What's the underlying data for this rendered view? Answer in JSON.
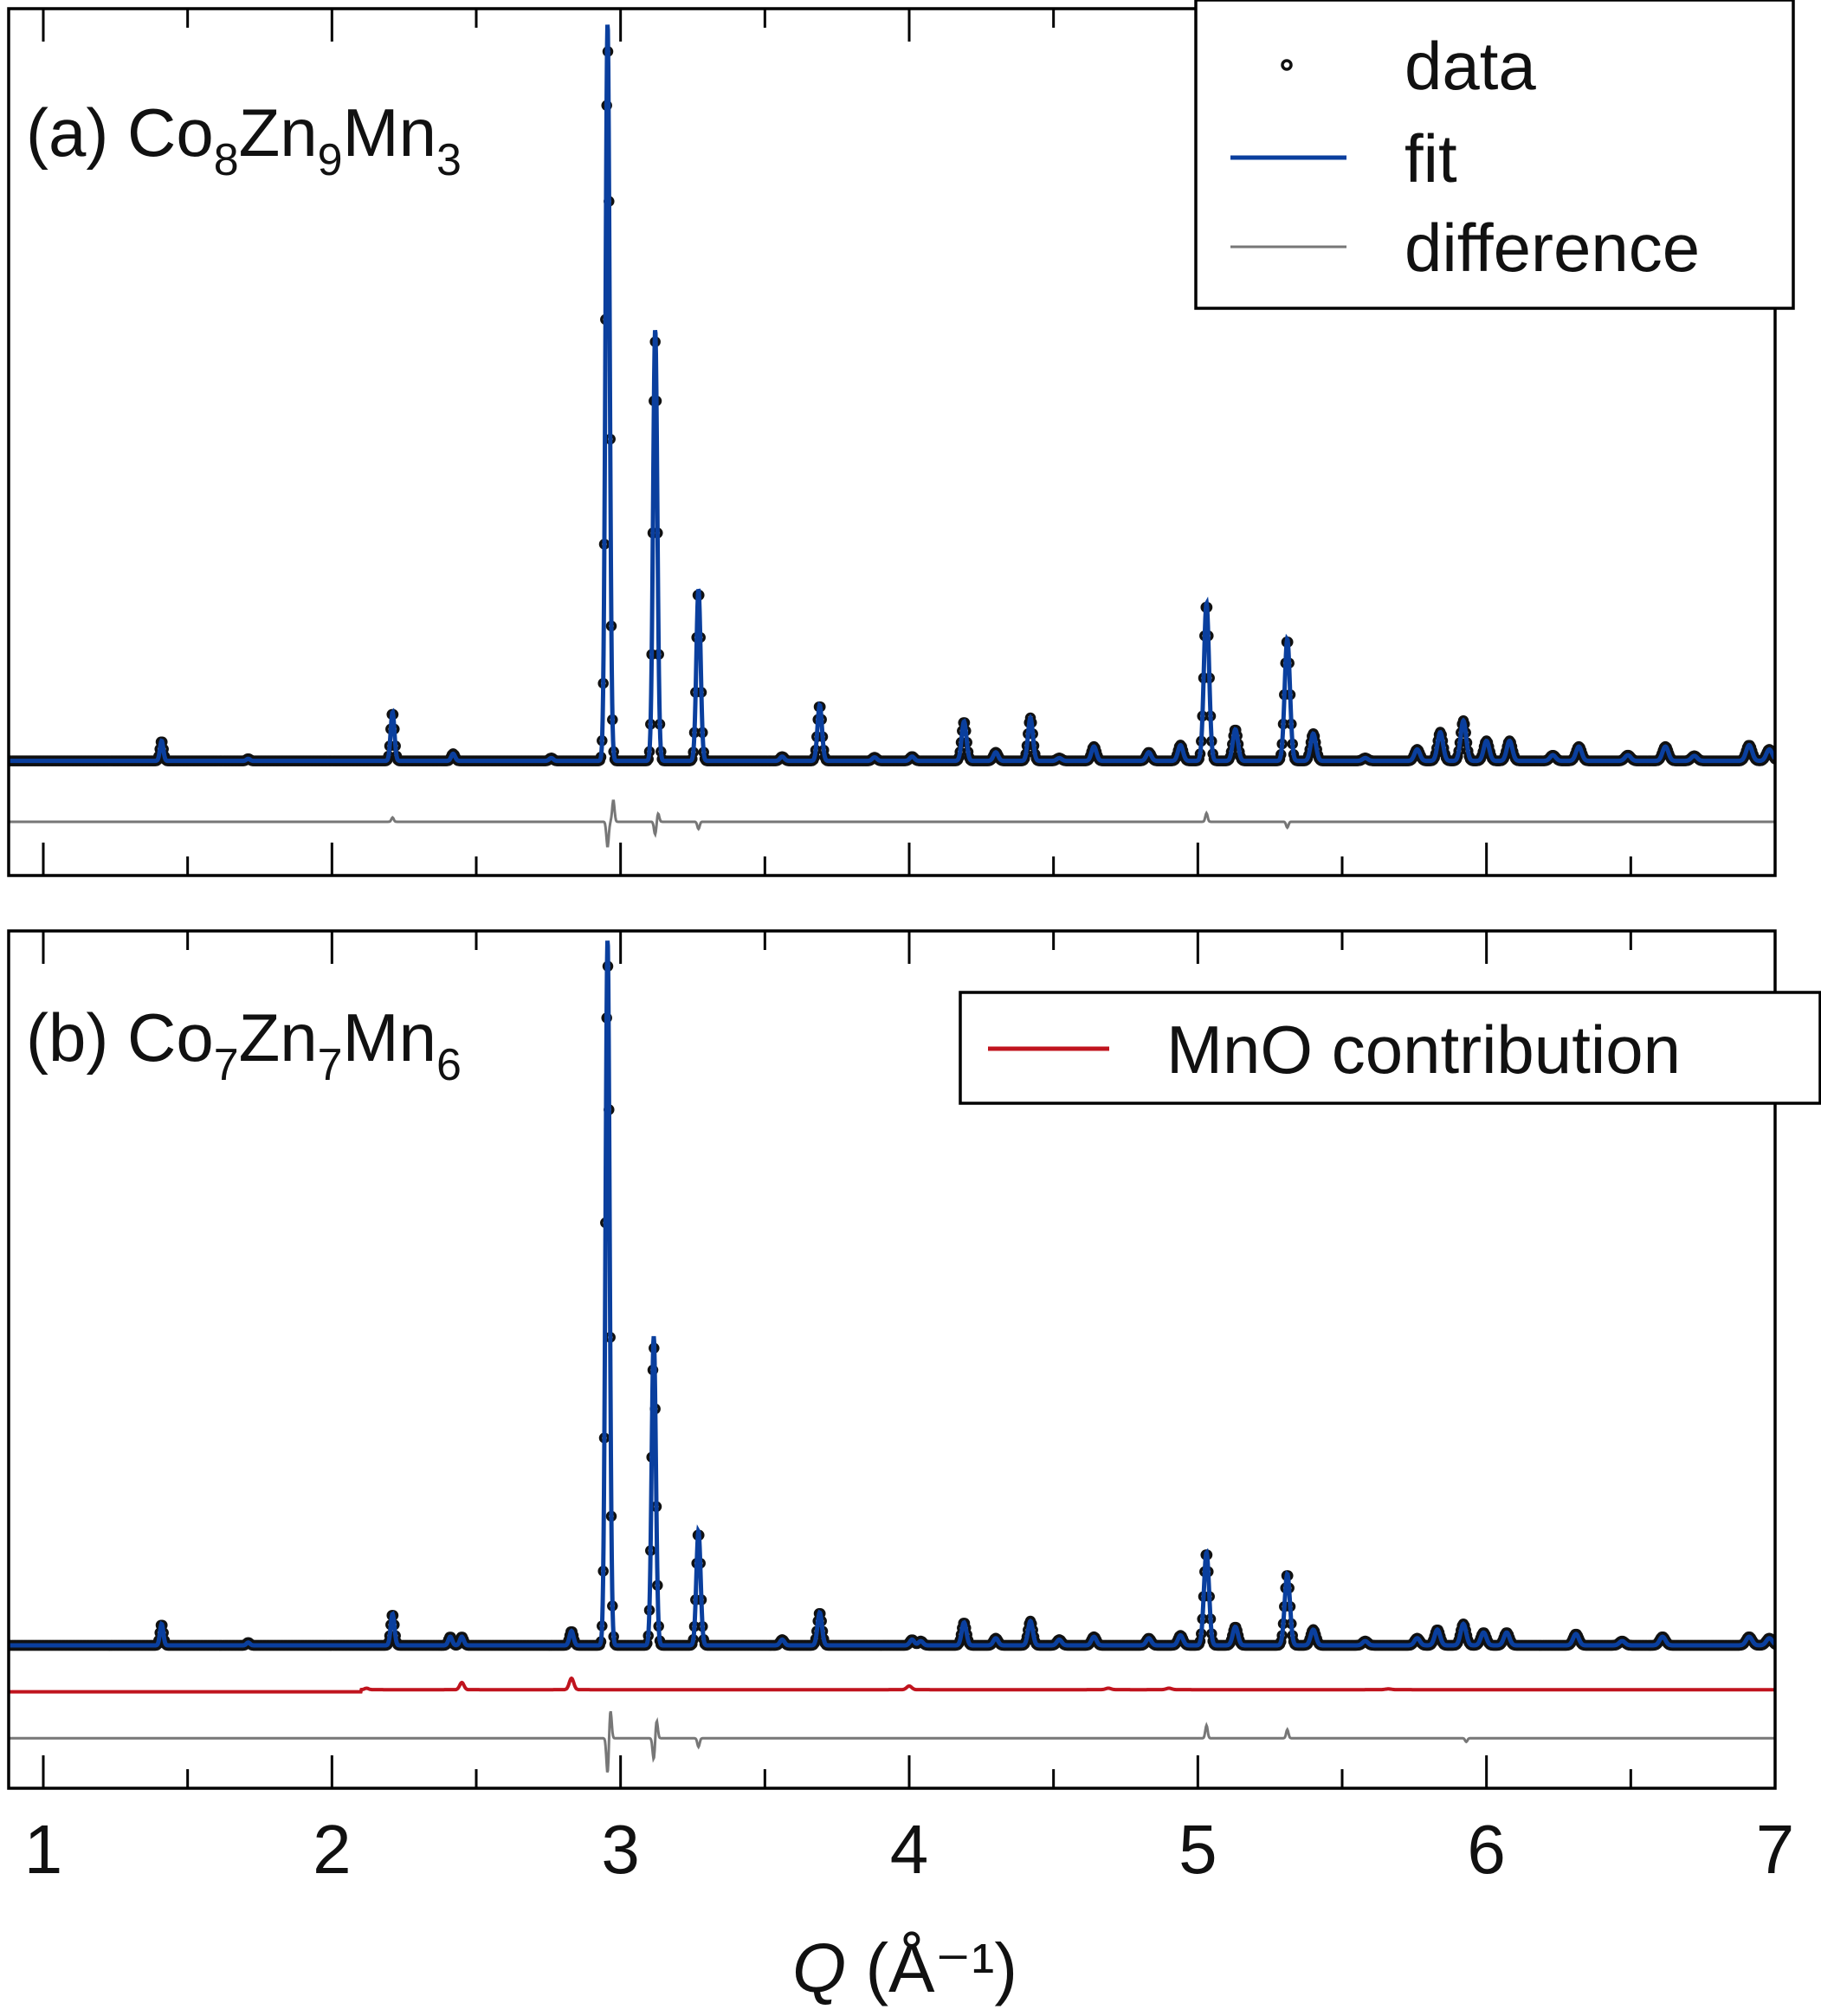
{
  "chart_data": [
    {
      "type": "scatter",
      "panel": "a",
      "title_prefix": "(a) ",
      "formula": [
        [
          "Co",
          "8"
        ],
        [
          "Zn",
          "9"
        ],
        [
          "Mn",
          "3"
        ]
      ],
      "xlabel_symbol": "Q",
      "xlabel_unit": " (Å⁻¹)",
      "xlim": [
        0.88,
        7.0
      ],
      "ylim": [
        -0.16,
        1.05
      ],
      "baseline": 0.0,
      "difference_offset": -0.085,
      "legend": {
        "placement": "top-right",
        "entries": [
          "data",
          "fit",
          "difference"
        ]
      },
      "series": [
        {
          "name": "data",
          "marker": "open-circle"
        },
        {
          "name": "fit",
          "style": "line"
        },
        {
          "name": "difference",
          "style": "line"
        }
      ],
      "peaks": [
        {
          "q": 1.41,
          "h": 0.028
        },
        {
          "q": 1.71,
          "h": 0.003
        },
        {
          "q": 2.21,
          "h": 0.068
        },
        {
          "q": 2.42,
          "h": 0.01
        },
        {
          "q": 2.76,
          "h": 0.004
        },
        {
          "q": 2.955,
          "h": 1.0
        },
        {
          "q": 3.12,
          "h": 0.585
        },
        {
          "q": 3.27,
          "h": 0.24
        },
        {
          "q": 3.56,
          "h": 0.006
        },
        {
          "q": 3.69,
          "h": 0.078
        },
        {
          "q": 3.88,
          "h": 0.005
        },
        {
          "q": 4.01,
          "h": 0.006
        },
        {
          "q": 4.19,
          "h": 0.055
        },
        {
          "q": 4.3,
          "h": 0.012
        },
        {
          "q": 4.42,
          "h": 0.06
        },
        {
          "q": 4.52,
          "h": 0.004
        },
        {
          "q": 4.64,
          "h": 0.02
        },
        {
          "q": 4.83,
          "h": 0.012
        },
        {
          "q": 4.94,
          "h": 0.022
        },
        {
          "q": 5.03,
          "h": 0.22
        },
        {
          "q": 5.13,
          "h": 0.044
        },
        {
          "q": 5.31,
          "h": 0.17
        },
        {
          "q": 5.4,
          "h": 0.038
        },
        {
          "q": 5.58,
          "h": 0.004
        },
        {
          "q": 5.76,
          "h": 0.016
        },
        {
          "q": 5.84,
          "h": 0.04
        },
        {
          "q": 5.92,
          "h": 0.056
        },
        {
          "q": 6.0,
          "h": 0.028
        },
        {
          "q": 6.08,
          "h": 0.028
        },
        {
          "q": 6.23,
          "h": 0.008
        },
        {
          "q": 6.32,
          "h": 0.02
        },
        {
          "q": 6.49,
          "h": 0.008
        },
        {
          "q": 6.62,
          "h": 0.02
        },
        {
          "q": 6.72,
          "h": 0.007
        },
        {
          "q": 6.91,
          "h": 0.022
        },
        {
          "q": 6.98,
          "h": 0.016
        }
      ],
      "difference_spikes": [
        {
          "q": 2.955,
          "a": -0.035
        },
        {
          "q": 2.975,
          "a": 0.03
        },
        {
          "q": 3.12,
          "a": -0.018
        },
        {
          "q": 3.13,
          "a": 0.012
        },
        {
          "q": 3.27,
          "a": -0.01
        },
        {
          "q": 5.03,
          "a": 0.012
        },
        {
          "q": 5.31,
          "a": -0.008
        },
        {
          "q": 2.21,
          "a": 0.006
        }
      ]
    },
    {
      "type": "scatter",
      "panel": "b",
      "title_prefix": "(b) ",
      "formula": [
        [
          "Co",
          "7"
        ],
        [
          "Zn",
          "7"
        ],
        [
          "Mn",
          "6"
        ]
      ],
      "xlabel_symbol": "Q",
      "xlabel_unit": " (Å⁻¹)",
      "xlim": [
        0.88,
        7.0
      ],
      "ylim": [
        -0.2,
        1.0
      ],
      "baseline": 0.0,
      "mno_offset": -0.065,
      "difference_offset": -0.13,
      "legend": {
        "placement": "top-right",
        "entries": [
          "MnO contribution"
        ]
      },
      "series": [
        {
          "name": "data",
          "marker": "open-circle"
        },
        {
          "name": "fit",
          "style": "line"
        },
        {
          "name": "MnO contribution",
          "style": "line"
        },
        {
          "name": "difference",
          "style": "line"
        }
      ],
      "peaks": [
        {
          "q": 1.41,
          "h": 0.03
        },
        {
          "q": 1.71,
          "h": 0.004
        },
        {
          "q": 2.21,
          "h": 0.044
        },
        {
          "q": 2.41,
          "h": 0.012
        },
        {
          "q": 2.45,
          "h": 0.012
        },
        {
          "q": 2.83,
          "h": 0.02
        },
        {
          "q": 2.955,
          "h": 0.96
        },
        {
          "q": 3.115,
          "h": 0.42
        },
        {
          "q": 3.27,
          "h": 0.16
        },
        {
          "q": 3.56,
          "h": 0.008
        },
        {
          "q": 3.69,
          "h": 0.046
        },
        {
          "q": 4.01,
          "h": 0.008
        },
        {
          "q": 4.04,
          "h": 0.006
        },
        {
          "q": 4.19,
          "h": 0.032
        },
        {
          "q": 4.3,
          "h": 0.01
        },
        {
          "q": 4.42,
          "h": 0.034
        },
        {
          "q": 4.52,
          "h": 0.008
        },
        {
          "q": 4.64,
          "h": 0.012
        },
        {
          "q": 4.83,
          "h": 0.01
        },
        {
          "q": 4.94,
          "h": 0.014
        },
        {
          "q": 5.03,
          "h": 0.13
        },
        {
          "q": 5.13,
          "h": 0.026
        },
        {
          "q": 5.31,
          "h": 0.1
        },
        {
          "q": 5.4,
          "h": 0.022
        },
        {
          "q": 5.58,
          "h": 0.006
        },
        {
          "q": 5.76,
          "h": 0.01
        },
        {
          "q": 5.83,
          "h": 0.022
        },
        {
          "q": 5.92,
          "h": 0.03
        },
        {
          "q": 5.99,
          "h": 0.018
        },
        {
          "q": 6.07,
          "h": 0.018
        },
        {
          "q": 6.31,
          "h": 0.016
        },
        {
          "q": 6.47,
          "h": 0.006
        },
        {
          "q": 6.61,
          "h": 0.012
        },
        {
          "q": 6.91,
          "h": 0.012
        },
        {
          "q": 6.98,
          "h": 0.01
        }
      ],
      "mno_peaks": [
        {
          "q": 2.12,
          "h": 0.002
        },
        {
          "q": 2.45,
          "h": 0.01
        },
        {
          "q": 2.83,
          "h": 0.016
        },
        {
          "q": 4.0,
          "h": 0.005
        },
        {
          "q": 4.69,
          "h": 0.002
        },
        {
          "q": 4.9,
          "h": 0.002
        },
        {
          "q": 5.66,
          "h": 0.001
        }
      ],
      "difference_spikes": [
        {
          "q": 2.955,
          "a": -0.05
        },
        {
          "q": 2.965,
          "a": 0.04
        },
        {
          "q": 3.115,
          "a": -0.03
        },
        {
          "q": 3.125,
          "a": 0.025
        },
        {
          "q": 3.27,
          "a": -0.012
        },
        {
          "q": 5.03,
          "a": 0.018
        },
        {
          "q": 5.31,
          "a": 0.012
        },
        {
          "q": 5.93,
          "a": -0.005
        }
      ]
    }
  ],
  "x_ticks": [
    "1",
    "2",
    "3",
    "4",
    "5",
    "6",
    "7"
  ],
  "colors": {
    "data": "#111111",
    "fit": "#0a3f9e",
    "difference": "#777777",
    "mno": "#c0141e",
    "frame": "#000000"
  }
}
